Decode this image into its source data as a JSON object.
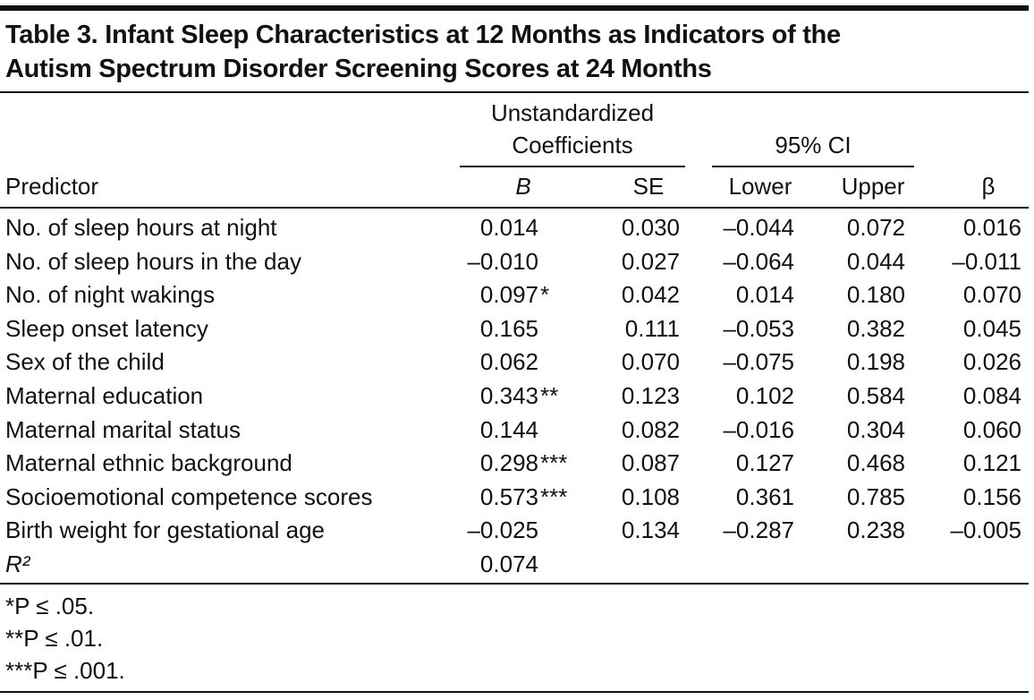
{
  "table": {
    "title_lines": [
      "Table 3. Infant Sleep Characteristics at 12 Months as Indicators of the",
      "Autism Spectrum Disorder Screening Scores at 24 Months"
    ],
    "group_headers": {
      "coefficients": [
        "Unstandardized",
        "Coefficients"
      ],
      "ci": "95% CI"
    },
    "columns": [
      "Predictor",
      "B",
      "SE",
      "Lower",
      "Upper",
      "β"
    ],
    "rows": [
      {
        "predictor": "No. of sleep hours at night",
        "b": "0.014",
        "se": "0.030",
        "lower": "–0.044",
        "upper": "0.072",
        "beta": "0.016"
      },
      {
        "predictor": "No. of sleep hours in the day",
        "b": "–0.010",
        "se": "0.027",
        "lower": "–0.064",
        "upper": "0.044",
        "beta": "–0.011"
      },
      {
        "predictor": "No. of night wakings",
        "b": "0.097",
        "b_stars": "*",
        "se": "0.042",
        "lower": "0.014",
        "upper": "0.180",
        "beta": "0.070"
      },
      {
        "predictor": "Sleep onset latency",
        "b": "0.165",
        "se": "0.111",
        "lower": "–0.053",
        "upper": "0.382",
        "beta": "0.045"
      },
      {
        "predictor": "Sex of the child",
        "b": "0.062",
        "se": "0.070",
        "lower": "–0.075",
        "upper": "0.198",
        "beta": "0.026"
      },
      {
        "predictor": "Maternal education",
        "b": "0.343",
        "b_stars": "**",
        "se": "0.123",
        "lower": "0.102",
        "upper": "0.584",
        "beta": "0.084"
      },
      {
        "predictor": "Maternal marital status",
        "b": "0.144",
        "se": "0.082",
        "lower": "–0.016",
        "upper": "0.304",
        "beta": "0.060"
      },
      {
        "predictor": "Maternal ethnic background",
        "b": "0.298",
        "b_stars": "***",
        "se": "0.087",
        "lower": "0.127",
        "upper": "0.468",
        "beta": "0.121"
      },
      {
        "predictor": "Socioemotional competence scores",
        "b": "0.573",
        "b_stars": "***",
        "se": "0.108",
        "lower": "0.361",
        "upper": "0.785",
        "beta": "0.156"
      },
      {
        "predictor": "Birth weight for gestational age",
        "b": "–0.025",
        "se": "0.134",
        "lower": "–0.287",
        "upper": "0.238",
        "beta": "–0.005"
      },
      {
        "predictor": "R²",
        "b": "0.074"
      }
    ],
    "footnotes": [
      "*P ≤ .05.",
      "**P ≤ .01.",
      "***P ≤ .001."
    ]
  }
}
